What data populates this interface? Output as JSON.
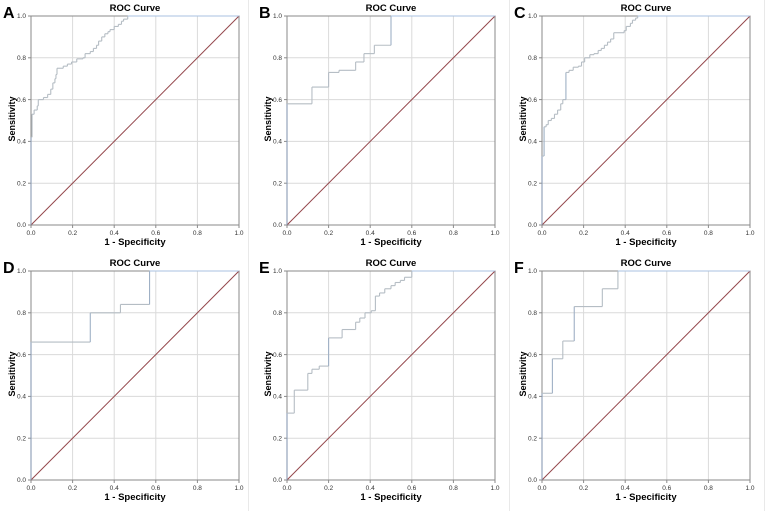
{
  "style": {
    "background": "#ffffff",
    "curve_color": "#b5bdc4",
    "curve_start_color": "#8a9cb4",
    "curve_jump_color": "#9fb0c5",
    "curve_top_color": "#a9c2e0",
    "reference_color": "#94474c",
    "grid_color": "#dadada",
    "frame_color": "#8a8a8a",
    "tick_color": "#333333",
    "separator_color": "#e9e9e9"
  },
  "chart_data": [
    {
      "type": "line",
      "panel": "A",
      "title": "ROC Curve",
      "xlabel": "1 - Specificity",
      "ylabel": "Sensitivity",
      "xlim": [
        0,
        1
      ],
      "ylim": [
        0,
        1
      ],
      "grid": true,
      "legend": false,
      "tick_values": [
        0,
        0.2,
        0.4,
        0.6,
        0.8,
        1.0
      ],
      "tick_labels": [
        "0.0",
        "0.2",
        "0.4",
        "0.6",
        "0.8",
        "1.0"
      ],
      "series": [
        {
          "name": "ROC curve",
          "points": [
            [
              0,
              0
            ],
            [
              0,
              0.42
            ],
            [
              0.005,
              0.42
            ],
            [
              0.005,
              0.53
            ],
            [
              0.015,
              0.53
            ],
            [
              0.015,
              0.55
            ],
            [
              0.03,
              0.55
            ],
            [
              0.03,
              0.57
            ],
            [
              0.035,
              0.57
            ],
            [
              0.035,
              0.6
            ],
            [
              0.06,
              0.6
            ],
            [
              0.06,
              0.61
            ],
            [
              0.08,
              0.61
            ],
            [
              0.08,
              0.625
            ],
            [
              0.095,
              0.625
            ],
            [
              0.095,
              0.65
            ],
            [
              0.105,
              0.65
            ],
            [
              0.105,
              0.68
            ],
            [
              0.115,
              0.68
            ],
            [
              0.115,
              0.7
            ],
            [
              0.12,
              0.7
            ],
            [
              0.12,
              0.72
            ],
            [
              0.125,
              0.72
            ],
            [
              0.125,
              0.75
            ],
            [
              0.155,
              0.75
            ],
            [
              0.155,
              0.76
            ],
            [
              0.175,
              0.76
            ],
            [
              0.175,
              0.77
            ],
            [
              0.195,
              0.77
            ],
            [
              0.195,
              0.78
            ],
            [
              0.22,
              0.78
            ],
            [
              0.22,
              0.795
            ],
            [
              0.25,
              0.795
            ],
            [
              0.25,
              0.8
            ],
            [
              0.26,
              0.8
            ],
            [
              0.26,
              0.82
            ],
            [
              0.285,
              0.82
            ],
            [
              0.285,
              0.83
            ],
            [
              0.3,
              0.83
            ],
            [
              0.3,
              0.845
            ],
            [
              0.315,
              0.845
            ],
            [
              0.315,
              0.86
            ],
            [
              0.325,
              0.86
            ],
            [
              0.325,
              0.88
            ],
            [
              0.34,
              0.88
            ],
            [
              0.34,
              0.9
            ],
            [
              0.355,
              0.9
            ],
            [
              0.355,
              0.915
            ],
            [
              0.37,
              0.915
            ],
            [
              0.37,
              0.925
            ],
            [
              0.38,
              0.925
            ],
            [
              0.38,
              0.935
            ],
            [
              0.4,
              0.935
            ],
            [
              0.4,
              0.95
            ],
            [
              0.42,
              0.95
            ],
            [
              0.42,
              0.96
            ],
            [
              0.435,
              0.96
            ],
            [
              0.435,
              0.975
            ],
            [
              0.445,
              0.975
            ],
            [
              0.445,
              0.985
            ],
            [
              0.465,
              0.985
            ],
            [
              0.465,
              1
            ],
            [
              1,
              1
            ]
          ]
        },
        {
          "name": "Reference line",
          "points": [
            [
              0,
              0
            ],
            [
              1,
              1
            ]
          ]
        }
      ]
    },
    {
      "type": "line",
      "panel": "B",
      "title": "ROC Curve",
      "xlabel": "1 - Specificity",
      "ylabel": "Sensitivity",
      "xlim": [
        0,
        1
      ],
      "ylim": [
        0,
        1
      ],
      "grid": true,
      "legend": false,
      "tick_values": [
        0,
        0.2,
        0.4,
        0.6,
        0.8,
        1.0
      ],
      "tick_labels": [
        "0.0",
        "0.2",
        "0.4",
        "0.6",
        "0.8",
        "1.0"
      ],
      "series": [
        {
          "name": "ROC curve",
          "points": [
            [
              0,
              0
            ],
            [
              0,
              0.58
            ],
            [
              0.12,
              0.58
            ],
            [
              0.12,
              0.66
            ],
            [
              0.2,
              0.66
            ],
            [
              0.2,
              0.73
            ],
            [
              0.25,
              0.73
            ],
            [
              0.25,
              0.74
            ],
            [
              0.33,
              0.74
            ],
            [
              0.33,
              0.78
            ],
            [
              0.37,
              0.78
            ],
            [
              0.37,
              0.82
            ],
            [
              0.42,
              0.82
            ],
            [
              0.42,
              0.86
            ],
            [
              0.5,
              0.86
            ],
            [
              0.5,
              1
            ],
            [
              1,
              1
            ]
          ]
        },
        {
          "name": "Reference line",
          "points": [
            [
              0,
              0
            ],
            [
              1,
              1
            ]
          ]
        }
      ]
    },
    {
      "type": "line",
      "panel": "C",
      "title": "ROC Curve",
      "xlabel": "1 - Specificity",
      "ylabel": "Sensitivity",
      "xlim": [
        0,
        1
      ],
      "ylim": [
        0,
        1
      ],
      "grid": true,
      "legend": false,
      "tick_values": [
        0,
        0.2,
        0.4,
        0.6,
        0.8,
        1.0
      ],
      "tick_labels": [
        "0.0",
        "0.2",
        "0.4",
        "0.6",
        "0.8",
        "1.0"
      ],
      "series": [
        {
          "name": "ROC curve",
          "points": [
            [
              0,
              0
            ],
            [
              0,
              0.33
            ],
            [
              0.01,
              0.33
            ],
            [
              0.01,
              0.47
            ],
            [
              0.02,
              0.47
            ],
            [
              0.02,
              0.48
            ],
            [
              0.03,
              0.48
            ],
            [
              0.03,
              0.5
            ],
            [
              0.045,
              0.5
            ],
            [
              0.045,
              0.51
            ],
            [
              0.06,
              0.51
            ],
            [
              0.06,
              0.53
            ],
            [
              0.075,
              0.53
            ],
            [
              0.075,
              0.55
            ],
            [
              0.09,
              0.55
            ],
            [
              0.09,
              0.58
            ],
            [
              0.1,
              0.58
            ],
            [
              0.1,
              0.6
            ],
            [
              0.115,
              0.6
            ],
            [
              0.115,
              0.73
            ],
            [
              0.13,
              0.73
            ],
            [
              0.13,
              0.74
            ],
            [
              0.15,
              0.74
            ],
            [
              0.15,
              0.755
            ],
            [
              0.175,
              0.755
            ],
            [
              0.175,
              0.76
            ],
            [
              0.19,
              0.76
            ],
            [
              0.19,
              0.78
            ],
            [
              0.205,
              0.78
            ],
            [
              0.205,
              0.8
            ],
            [
              0.23,
              0.8
            ],
            [
              0.23,
              0.815
            ],
            [
              0.25,
              0.815
            ],
            [
              0.25,
              0.82
            ],
            [
              0.27,
              0.82
            ],
            [
              0.27,
              0.835
            ],
            [
              0.285,
              0.835
            ],
            [
              0.285,
              0.845
            ],
            [
              0.3,
              0.845
            ],
            [
              0.3,
              0.86
            ],
            [
              0.315,
              0.86
            ],
            [
              0.315,
              0.875
            ],
            [
              0.33,
              0.875
            ],
            [
              0.33,
              0.89
            ],
            [
              0.345,
              0.89
            ],
            [
              0.345,
              0.92
            ],
            [
              0.395,
              0.92
            ],
            [
              0.395,
              0.93
            ],
            [
              0.405,
              0.93
            ],
            [
              0.405,
              0.95
            ],
            [
              0.425,
              0.95
            ],
            [
              0.425,
              0.965
            ],
            [
              0.435,
              0.965
            ],
            [
              0.435,
              0.98
            ],
            [
              0.45,
              0.98
            ],
            [
              0.45,
              0.99
            ],
            [
              0.46,
              0.99
            ],
            [
              0.46,
              1
            ],
            [
              1,
              1
            ]
          ]
        },
        {
          "name": "Reference line",
          "points": [
            [
              0,
              0
            ],
            [
              1,
              1
            ]
          ]
        }
      ]
    },
    {
      "type": "line",
      "panel": "D",
      "title": "ROC Curve",
      "xlabel": "1 - Specificity",
      "ylabel": "Sensitivity",
      "xlim": [
        0,
        1
      ],
      "ylim": [
        0,
        1
      ],
      "grid": true,
      "legend": false,
      "tick_values": [
        0,
        0.2,
        0.4,
        0.6,
        0.8,
        1.0
      ],
      "tick_labels": [
        "0.0",
        "0.2",
        "0.4",
        "0.6",
        "0.8",
        "1.0"
      ],
      "series": [
        {
          "name": "ROC curve",
          "points": [
            [
              0,
              0
            ],
            [
              0,
              0.66
            ],
            [
              0.285,
              0.66
            ],
            [
              0.285,
              0.8
            ],
            [
              0.43,
              0.8
            ],
            [
              0.43,
              0.84
            ],
            [
              0.57,
              0.84
            ],
            [
              0.57,
              1
            ],
            [
              1,
              1
            ]
          ]
        },
        {
          "name": "Reference line",
          "points": [
            [
              0,
              0
            ],
            [
              1,
              1
            ]
          ]
        }
      ]
    },
    {
      "type": "line",
      "panel": "E",
      "title": "ROC Curve",
      "xlabel": "1 - Specificity",
      "ylabel": "Sensitivity",
      "xlim": [
        0,
        1
      ],
      "ylim": [
        0,
        1
      ],
      "grid": true,
      "legend": false,
      "tick_values": [
        0,
        0.2,
        0.4,
        0.6,
        0.8,
        1.0
      ],
      "tick_labels": [
        "0.0",
        "0.2",
        "0.4",
        "0.6",
        "0.8",
        "1.0"
      ],
      "series": [
        {
          "name": "ROC curve",
          "points": [
            [
              0,
              0
            ],
            [
              0,
              0.32
            ],
            [
              0.035,
              0.32
            ],
            [
              0.035,
              0.43
            ],
            [
              0.1,
              0.43
            ],
            [
              0.1,
              0.51
            ],
            [
              0.12,
              0.51
            ],
            [
              0.12,
              0.53
            ],
            [
              0.155,
              0.53
            ],
            [
              0.155,
              0.545
            ],
            [
              0.2,
              0.545
            ],
            [
              0.2,
              0.68
            ],
            [
              0.265,
              0.68
            ],
            [
              0.265,
              0.72
            ],
            [
              0.33,
              0.72
            ],
            [
              0.33,
              0.755
            ],
            [
              0.35,
              0.755
            ],
            [
              0.35,
              0.775
            ],
            [
              0.375,
              0.775
            ],
            [
              0.375,
              0.8
            ],
            [
              0.405,
              0.8
            ],
            [
              0.405,
              0.81
            ],
            [
              0.425,
              0.81
            ],
            [
              0.425,
              0.88
            ],
            [
              0.445,
              0.88
            ],
            [
              0.445,
              0.895
            ],
            [
              0.47,
              0.895
            ],
            [
              0.47,
              0.915
            ],
            [
              0.5,
              0.915
            ],
            [
              0.5,
              0.93
            ],
            [
              0.52,
              0.93
            ],
            [
              0.52,
              0.945
            ],
            [
              0.545,
              0.945
            ],
            [
              0.545,
              0.955
            ],
            [
              0.565,
              0.955
            ],
            [
              0.565,
              0.97
            ],
            [
              0.6,
              0.97
            ],
            [
              0.6,
              1
            ],
            [
              1,
              1
            ]
          ]
        },
        {
          "name": "Reference line",
          "points": [
            [
              0,
              0
            ],
            [
              1,
              1
            ]
          ]
        }
      ]
    },
    {
      "type": "line",
      "panel": "F",
      "title": "ROC Curve",
      "xlabel": "1 - Specificity",
      "ylabel": "Sensitivity",
      "xlim": [
        0,
        1
      ],
      "ylim": [
        0,
        1
      ],
      "grid": true,
      "legend": false,
      "tick_values": [
        0,
        0.2,
        0.4,
        0.6,
        0.8,
        1.0
      ],
      "tick_labels": [
        "0.0",
        "0.2",
        "0.4",
        "0.6",
        "0.8",
        "1.0"
      ],
      "series": [
        {
          "name": "ROC curve",
          "points": [
            [
              0,
              0
            ],
            [
              0,
              0.415
            ],
            [
              0.05,
              0.415
            ],
            [
              0.05,
              0.58
            ],
            [
              0.1,
              0.58
            ],
            [
              0.1,
              0.665
            ],
            [
              0.155,
              0.665
            ],
            [
              0.155,
              0.83
            ],
            [
              0.29,
              0.83
            ],
            [
              0.29,
              0.915
            ],
            [
              0.365,
              0.915
            ],
            [
              0.365,
              1
            ],
            [
              1,
              1
            ]
          ]
        },
        {
          "name": "Reference line",
          "points": [
            [
              0,
              0
            ],
            [
              1,
              1
            ]
          ]
        }
      ]
    }
  ]
}
